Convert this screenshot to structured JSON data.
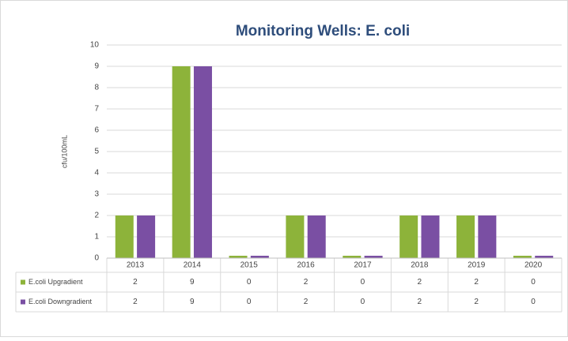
{
  "chart_data": {
    "type": "bar",
    "title": "Monitoring Wells: E. coli",
    "y_label": "cfu/100mL",
    "categories": [
      "2013",
      "2014",
      "2015",
      "2016",
      "2017",
      "2018",
      "2019",
      "2020"
    ],
    "series": [
      {
        "name": "E.coli Upgradient",
        "color": "#8db33a",
        "values": [
          2,
          9,
          0,
          2,
          0,
          2,
          2,
          0
        ]
      },
      {
        "name": "E.coli Downgradient",
        "color": "#7a4fa3",
        "values": [
          2,
          9,
          0,
          2,
          0,
          2,
          2,
          0
        ]
      }
    ],
    "ylim": [
      0,
      10
    ],
    "yticks": [
      0,
      1,
      2,
      3,
      4,
      5,
      6,
      7,
      8,
      9,
      10
    ],
    "grid": true
  }
}
